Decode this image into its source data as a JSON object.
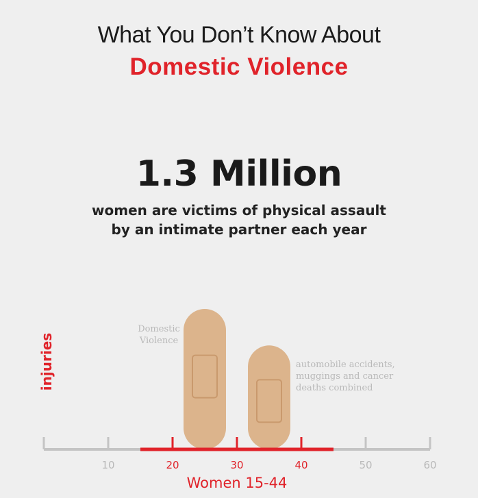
{
  "header": {
    "title_line1": "What You Don’t Know About",
    "title_line2": "Domestic Violence"
  },
  "stat": {
    "headline": "1.3 Million",
    "line1": "women are victims of physical assault",
    "line2": "by an intimate partner each year"
  },
  "colors": {
    "background": "#efefef",
    "accent_red": "#e0232a",
    "bandage": "#dcb48c",
    "bandage_pad": "#c9996d",
    "axis_gray": "#c4c4c4",
    "label_gray": "#b9b9b9"
  },
  "chart_data": {
    "type": "bar",
    "ylabel": "injuries",
    "xlabel": "Women 15-44",
    "x_ticks": [
      10,
      20,
      30,
      40,
      50,
      60
    ],
    "xlim": [
      0,
      60
    ],
    "highlight_range": [
      15,
      45
    ],
    "bars": [
      {
        "label_lines": [
          "Domestic",
          "Violence"
        ],
        "x": 25,
        "relative_value": 1.0
      },
      {
        "label_lines": [
          "automobile accidents,",
          "muggings and cancer",
          "deaths combined"
        ],
        "x": 35,
        "relative_value": 0.74
      }
    ]
  }
}
